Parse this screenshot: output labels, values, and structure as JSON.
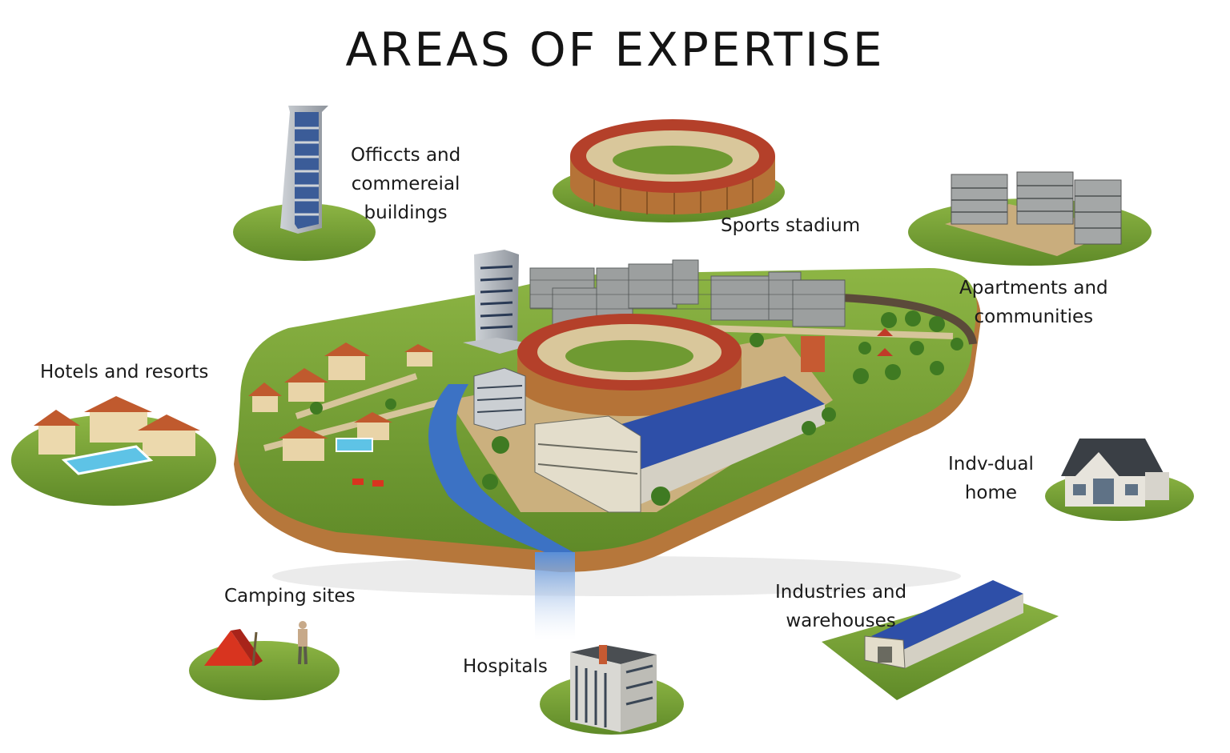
{
  "title": "AREAS OF EXPERTISE",
  "areas": [
    {
      "name": "offices",
      "lines": [
        "Officcts and",
        "commereial",
        "buildings"
      ]
    },
    {
      "name": "stadium",
      "lines": [
        "Sports stadium"
      ]
    },
    {
      "name": "apartments",
      "lines": [
        "Apartments and",
        "communities"
      ]
    },
    {
      "name": "hotels",
      "lines": [
        "Hotels and resorts"
      ]
    },
    {
      "name": "home",
      "lines": [
        "Indv-dual",
        "home"
      ]
    },
    {
      "name": "camping",
      "lines": [
        "Camping sites"
      ]
    },
    {
      "name": "hospitals",
      "lines": [
        "Hospitals"
      ]
    },
    {
      "name": "industries",
      "lines": [
        "Industries and",
        "warehouses"
      ]
    }
  ],
  "icons": [
    "office-tower-icon",
    "stadium-icon",
    "apartment-blocks-icon",
    "resort-villas-icon",
    "house-icon",
    "tent-icon",
    "hospital-building-icon",
    "warehouse-icon",
    "city-island-illustration"
  ],
  "colors": {
    "grass": "#6f9a32",
    "earth": "#b87a3e",
    "stadium_roof": "#b5432a",
    "warehouse_roof": "#2e4fa8",
    "water": "#3c72c4",
    "pool": "#5ec3e6",
    "tent": "#d8341f"
  }
}
